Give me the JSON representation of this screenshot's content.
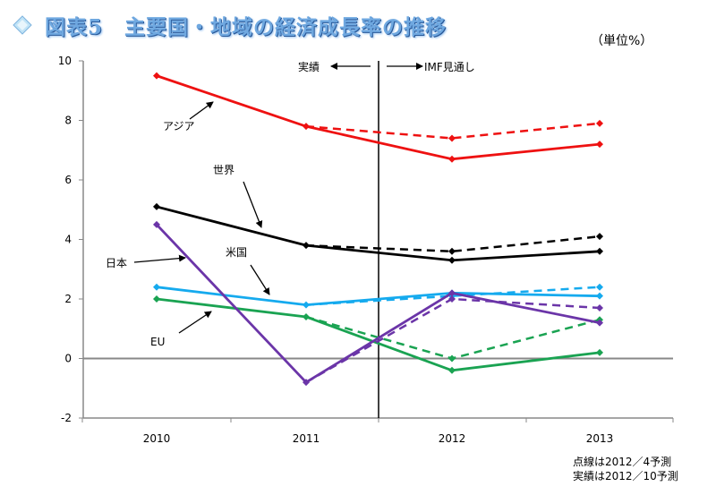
{
  "title": "図表5　主要国・地域の経済成長率の推移",
  "unit_label": "（単位%）",
  "notes": [
    "点線は2012／4予測",
    "実績は2012／10予測"
  ],
  "colors": {
    "asia": "#ee1111",
    "world": "#000000",
    "usa": "#15aaee",
    "eu": "#1aa352",
    "japan": "#6b35a8",
    "title": "#6fa8e0"
  },
  "chart_data": {
    "type": "line",
    "x": [
      "2010",
      "2011",
      "2012",
      "2013"
    ],
    "ylim": [
      -2,
      10
    ],
    "yticks": [
      "-2",
      "0",
      "2",
      "4",
      "6",
      "8",
      "10"
    ],
    "divider_labels": {
      "left": "実績",
      "right": "IMF見通し"
    },
    "series": [
      {
        "name": "アジア",
        "key": "asia",
        "actual": [
          9.5,
          7.8,
          6.7,
          7.2
        ],
        "forecast": [
          7.8,
          7.4,
          7.9
        ]
      },
      {
        "name": "世界",
        "key": "world",
        "actual": [
          5.1,
          3.8,
          3.3,
          3.6
        ],
        "forecast": [
          3.8,
          3.6,
          4.1
        ]
      },
      {
        "name": "米国",
        "key": "usa",
        "actual": [
          2.4,
          1.8,
          2.2,
          2.1
        ],
        "forecast": [
          1.8,
          2.1,
          2.4
        ]
      },
      {
        "name": "EU",
        "key": "eu",
        "actual": [
          2.0,
          1.4,
          -0.4,
          0.2
        ],
        "forecast": [
          1.4,
          0.0,
          1.3
        ]
      },
      {
        "name": "日本",
        "key": "japan",
        "actual": [
          4.5,
          -0.8,
          2.2,
          1.2
        ],
        "forecast": [
          -0.8,
          2.0,
          1.7
        ]
      }
    ]
  }
}
